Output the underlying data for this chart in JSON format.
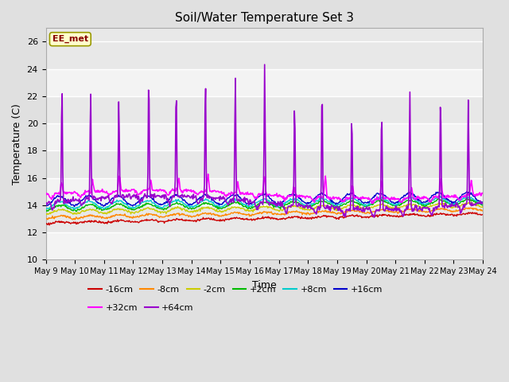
{
  "title": "Soil/Water Temperature Set 3",
  "xlabel": "Time",
  "ylabel": "Temperature (C)",
  "ylim": [
    10,
    27
  ],
  "yticks": [
    10,
    12,
    14,
    16,
    18,
    20,
    22,
    24,
    26
  ],
  "x_tick_labels": [
    "May 9",
    "May 10",
    "May 11",
    "May 12",
    "May 13",
    "May 14",
    "May 15",
    "May 16",
    "May 17",
    "May 18",
    "May 19",
    "May 20",
    "May 21",
    "May 22",
    "May 23",
    "May 24"
  ],
  "watermark": "EE_met",
  "fig_bg_color": "#e0e0e0",
  "plot_bg_color": "#e8e8e8",
  "series": [
    {
      "label": "-16cm",
      "color": "#cc0000"
    },
    {
      "label": "-8cm",
      "color": "#ff8800"
    },
    {
      "label": "-2cm",
      "color": "#cccc00"
    },
    {
      "label": "+2cm",
      "color": "#00bb00"
    },
    {
      "label": "+8cm",
      "color": "#00cccc"
    },
    {
      "label": "+16cm",
      "color": "#0000cc"
    },
    {
      "label": "+32cm",
      "color": "#ff00ff"
    },
    {
      "label": "+64cm",
      "color": "#9900cc"
    }
  ]
}
